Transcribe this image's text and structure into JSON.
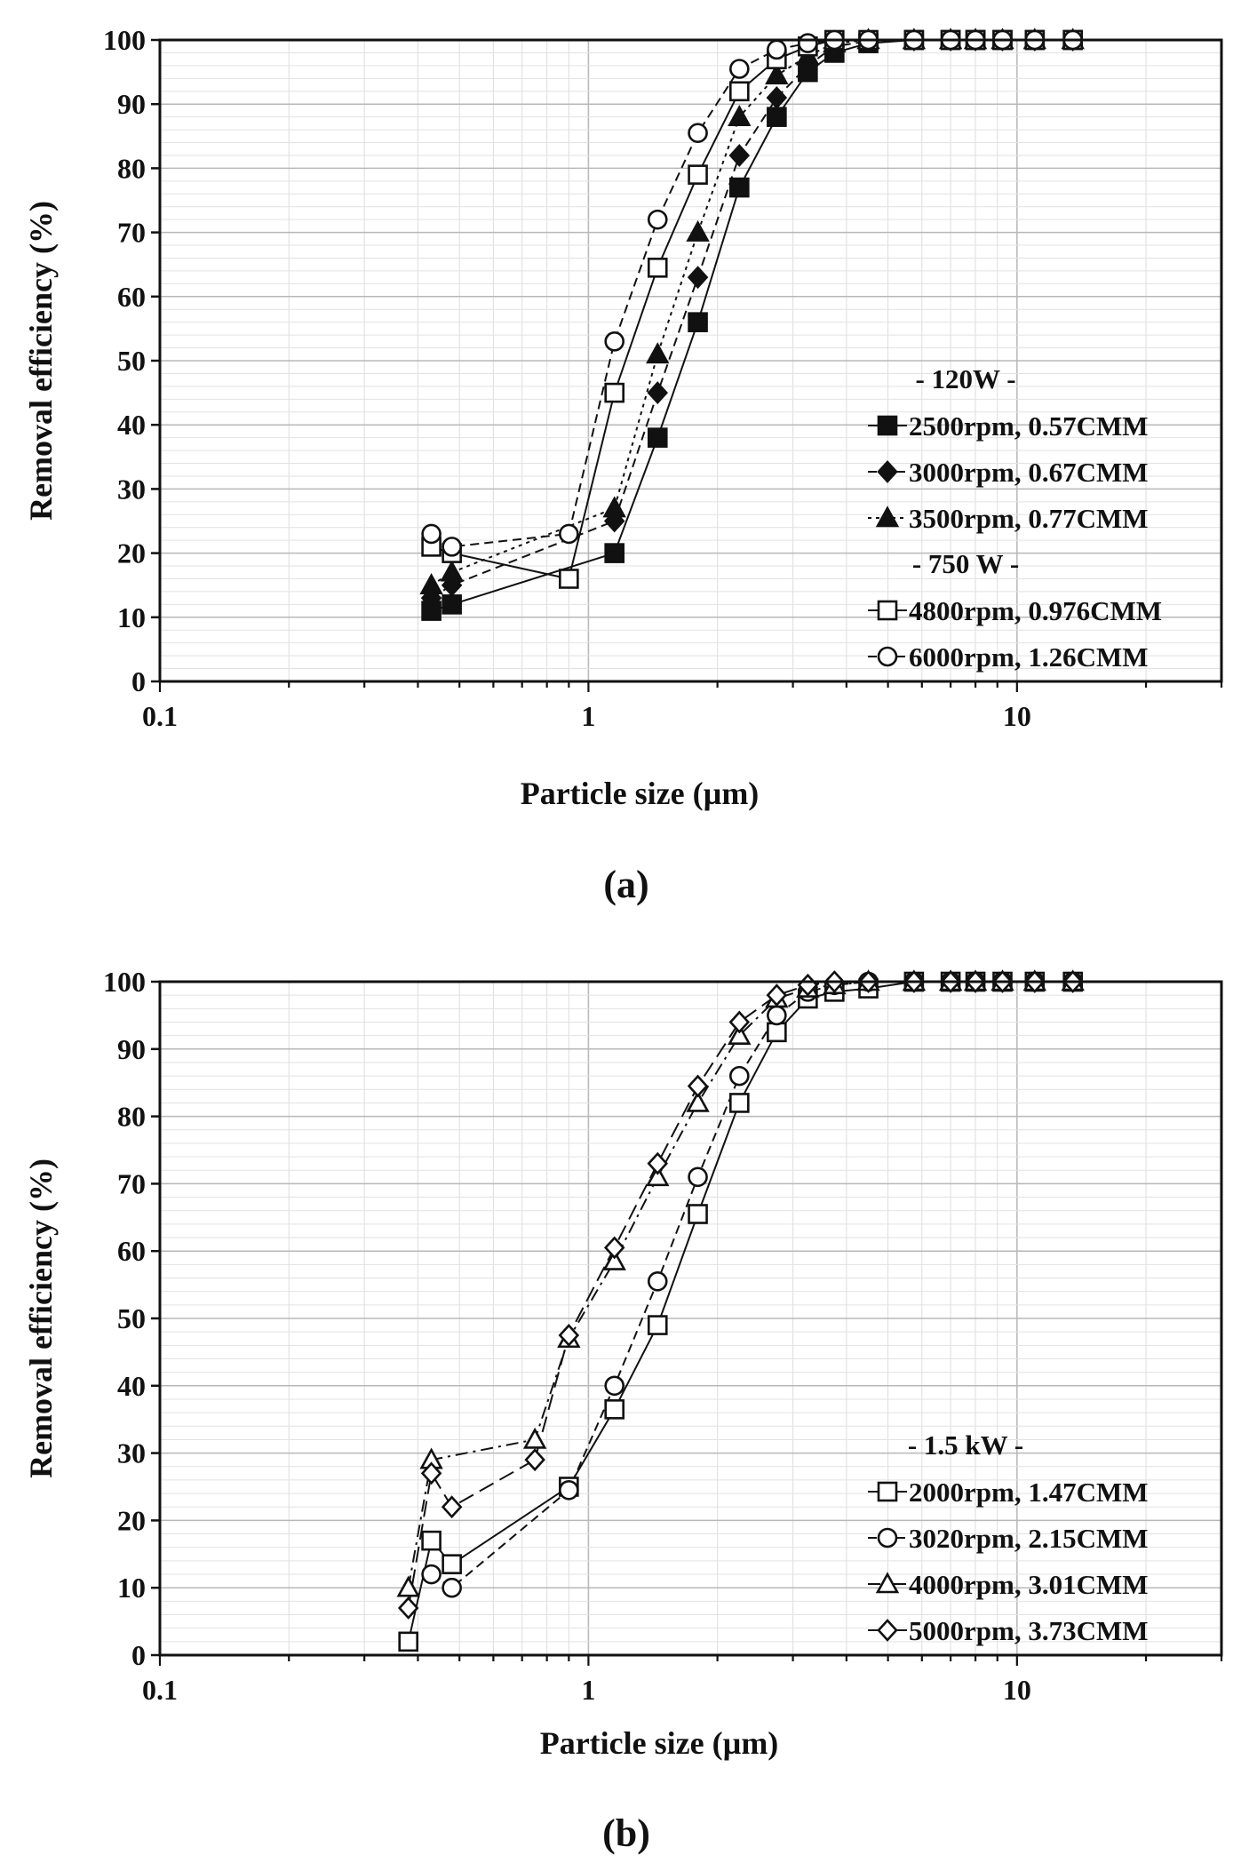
{
  "chart_data": [
    {
      "type": "scatter",
      "panel_label": "(a)",
      "xlabel": "Particle size (µm)",
      "ylabel": "Removal efficiency (%)",
      "xscale": "log",
      "xlim": [
        0.1,
        30
      ],
      "ylim": [
        0,
        100
      ],
      "x_ticks": [
        0.1,
        1,
        10
      ],
      "x_tick_labels": [
        "0.1",
        "1",
        "10"
      ],
      "y_ticks": [
        0,
        10,
        20,
        30,
        40,
        50,
        60,
        70,
        80,
        90,
        100
      ],
      "y_tick_labels": [
        "0",
        "10",
        "20",
        "30",
        "40",
        "50",
        "60",
        "70",
        "80",
        "90",
        "100"
      ],
      "grid": true,
      "legend_position": "bottom-right",
      "legend_groups": [
        {
          "title": "- 120W -",
          "series": [
            0,
            1,
            2
          ]
        },
        {
          "title": "- 750 W -",
          "series": [
            3,
            4
          ]
        }
      ],
      "series": [
        {
          "name": "2500rpm, 0.57CMM",
          "marker": "square",
          "filled": true,
          "dash": "solid",
          "x": [
            0.43,
            0.48,
            1.15,
            1.45,
            1.8,
            2.25,
            2.75,
            3.25,
            3.75,
            4.5,
            5.75,
            7,
            8,
            9.25,
            11,
            13.5
          ],
          "values": [
            11,
            12,
            20,
            38,
            56,
            77,
            88,
            95,
            98,
            99.5,
            100,
            100,
            100,
            100,
            100,
            100
          ]
        },
        {
          "name": "3000rpm, 0.67CMM",
          "marker": "diamond",
          "filled": true,
          "dash": "dash",
          "x": [
            0.43,
            0.48,
            1.15,
            1.45,
            1.8,
            2.25,
            2.75,
            3.25,
            3.75,
            4.5,
            5.75,
            7,
            8,
            9.25,
            11,
            13.5
          ],
          "values": [
            13,
            15,
            25,
            45,
            63,
            82,
            91,
            96,
            99,
            99.8,
            100,
            100,
            100,
            100,
            100,
            100
          ]
        },
        {
          "name": "3500rpm, 0.77CMM",
          "marker": "triangle",
          "filled": true,
          "dash": "dot",
          "x": [
            0.43,
            0.48,
            1.15,
            1.45,
            1.8,
            2.25,
            2.75,
            3.25,
            3.75,
            4.5,
            5.75,
            7,
            8,
            9.25,
            11,
            13.5
          ],
          "values": [
            15,
            17,
            27,
            51,
            70,
            88,
            94.5,
            97.5,
            99.5,
            100,
            100,
            100,
            100,
            100,
            100,
            100
          ]
        },
        {
          "name": "4800rpm, 0.976CMM",
          "marker": "square",
          "filled": false,
          "dash": "solid",
          "x": [
            0.43,
            0.48,
            0.9,
            1.15,
            1.45,
            1.8,
            2.25,
            2.75,
            3.25,
            3.75,
            4.5,
            5.75,
            7,
            8,
            9.25,
            11,
            13.5
          ],
          "values": [
            21,
            20,
            16,
            45,
            64.5,
            79,
            92,
            97,
            99,
            100,
            100,
            100,
            100,
            100,
            100,
            100,
            100
          ]
        },
        {
          "name": "6000rpm, 1.26CMM",
          "marker": "circle",
          "filled": false,
          "dash": "dash",
          "x": [
            0.43,
            0.48,
            0.9,
            1.15,
            1.45,
            1.8,
            2.25,
            2.75,
            3.25,
            3.75,
            4.5,
            5.75,
            7,
            8,
            9.25,
            11,
            13.5
          ],
          "values": [
            23,
            21,
            23,
            53,
            72,
            85.5,
            95.5,
            98.5,
            99.5,
            100,
            100,
            100,
            100,
            100,
            100,
            100,
            100
          ]
        }
      ]
    },
    {
      "type": "scatter",
      "panel_label": "(b)",
      "xlabel": "Particle size (µm)",
      "ylabel": "Removal efficiency (%)",
      "xscale": "log",
      "xlim": [
        0.1,
        30
      ],
      "ylim": [
        0,
        100
      ],
      "x_ticks": [
        0.1,
        1,
        10
      ],
      "x_tick_labels": [
        "0.1",
        "1",
        "10"
      ],
      "y_ticks": [
        0,
        10,
        20,
        30,
        40,
        50,
        60,
        70,
        80,
        90,
        100
      ],
      "y_tick_labels": [
        "0",
        "10",
        "20",
        "30",
        "40",
        "50",
        "60",
        "70",
        "80",
        "90",
        "100"
      ],
      "grid": true,
      "legend_position": "bottom-right",
      "legend_groups": [
        {
          "title": "- 1.5 kW -",
          "series": [
            0,
            1,
            2,
            3
          ]
        }
      ],
      "series": [
        {
          "name": "2000rpm, 1.47CMM",
          "marker": "square",
          "filled": false,
          "dash": "solid",
          "x": [
            0.38,
            0.43,
            0.48,
            0.9,
            1.15,
            1.45,
            1.8,
            2.25,
            2.75,
            3.25,
            3.75,
            4.5,
            5.75,
            7,
            8,
            9.25,
            11,
            13.5
          ],
          "values": [
            2,
            17,
            13.5,
            25,
            36.5,
            49,
            65.5,
            82,
            92.5,
            97.5,
            98.5,
            99,
            100,
            100,
            100,
            100,
            100,
            100
          ]
        },
        {
          "name": "3020rpm, 2.15CMM",
          "marker": "circle",
          "filled": false,
          "dash": "dash",
          "x": [
            0.43,
            0.48,
            0.9,
            1.15,
            1.45,
            1.8,
            2.25,
            2.75,
            3.25,
            3.75,
            4.5,
            5.75,
            7,
            8,
            9.25,
            11,
            13.5
          ],
          "values": [
            12,
            10,
            24.5,
            40,
            55.5,
            71,
            86,
            95,
            98.5,
            99.5,
            100,
            100,
            100,
            100,
            100,
            100,
            100
          ]
        },
        {
          "name": "4000rpm, 3.01CMM",
          "marker": "triangle",
          "filled": false,
          "dash": "dashdot",
          "x": [
            0.38,
            0.43,
            0.75,
            0.9,
            1.15,
            1.45,
            1.8,
            2.25,
            2.75,
            3.25,
            3.75,
            4.5,
            5.75,
            7,
            8,
            9.25,
            11,
            13.5
          ],
          "values": [
            10,
            29,
            32,
            47,
            58.5,
            71,
            82,
            92,
            97.5,
            99,
            99.5,
            100,
            100,
            100,
            100,
            100,
            100,
            100
          ]
        },
        {
          "name": "5000rpm, 3.73CMM",
          "marker": "diamond",
          "filled": false,
          "dash": "longdash",
          "x": [
            0.38,
            0.43,
            0.48,
            0.75,
            0.9,
            1.15,
            1.45,
            1.8,
            2.25,
            2.75,
            3.25,
            3.75,
            4.5,
            5.75,
            7,
            8,
            9.25,
            11,
            13.5
          ],
          "values": [
            7,
            27,
            22,
            29,
            47.5,
            60.5,
            73,
            84.5,
            94,
            98,
            99.5,
            100,
            100,
            100,
            100,
            100,
            100,
            100,
            100
          ]
        }
      ]
    }
  ]
}
